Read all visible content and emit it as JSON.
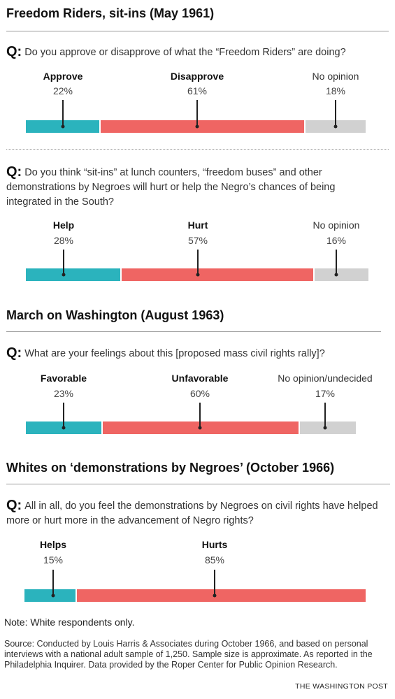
{
  "colors": {
    "help": "#2bb3bd",
    "hurt": "#ef6563",
    "none": "#d1d1d1"
  },
  "sections": [
    {
      "title": "Freedom Riders, sit-ins (May 1961)"
    },
    {
      "title": "March on Washington (August 1963)"
    },
    {
      "title": "Whites on ‘demonstrations by Negroes’ (October 1966)"
    }
  ],
  "q_marker": "Q:",
  "chart_data": [
    {
      "type": "bar",
      "orientation": "horizontal-stacked",
      "question": "Do you approve or disapprove of what the “Freedom Riders” are doing?",
      "categories": [
        "Approve",
        "Disapprove",
        "No opinion"
      ],
      "labels_display": [
        "22%",
        "61%",
        "18%"
      ],
      "values": [
        22,
        61,
        18
      ]
    },
    {
      "type": "bar",
      "orientation": "horizontal-stacked",
      "question": "Do you think “sit-ins” at lunch counters, “freedom buses” and other demonstrations by Negroes will hurt or help the Negro’s chances of being integrated in the South?",
      "categories": [
        "Help",
        "Hurt",
        "No opinion"
      ],
      "labels_display": [
        "28%",
        "57%",
        "16%"
      ],
      "values": [
        28,
        57,
        16
      ]
    },
    {
      "type": "bar",
      "orientation": "horizontal-stacked",
      "question": "What are your feelings about this [proposed mass civil rights rally]?",
      "categories": [
        "Favorable",
        "Unfavorable",
        "No opinion/undecided"
      ],
      "labels_display": [
        "23%",
        "60%",
        "17%"
      ],
      "values": [
        23,
        60,
        17
      ]
    },
    {
      "type": "bar",
      "orientation": "horizontal-stacked",
      "question": "All in all, do you feel the demonstrations by Negroes on civil rights have helped more or hurt more in the advancement of Negro rights?",
      "categories": [
        "Helps",
        "Hurts"
      ],
      "labels_display": [
        "15%",
        "85%"
      ],
      "values": [
        15,
        85
      ]
    }
  ],
  "note": "Note: White respondents only.",
  "source": "Source: Conducted by Louis Harris & Associates during October 1966, and based on personal interviews with a national adult sample of 1,250. Sample size is approximate. As reported in the Philadelphia Inquirer. Data provided by the Roper Center for Public Opinion Research.",
  "credit": "THE WASHINGTON POST"
}
